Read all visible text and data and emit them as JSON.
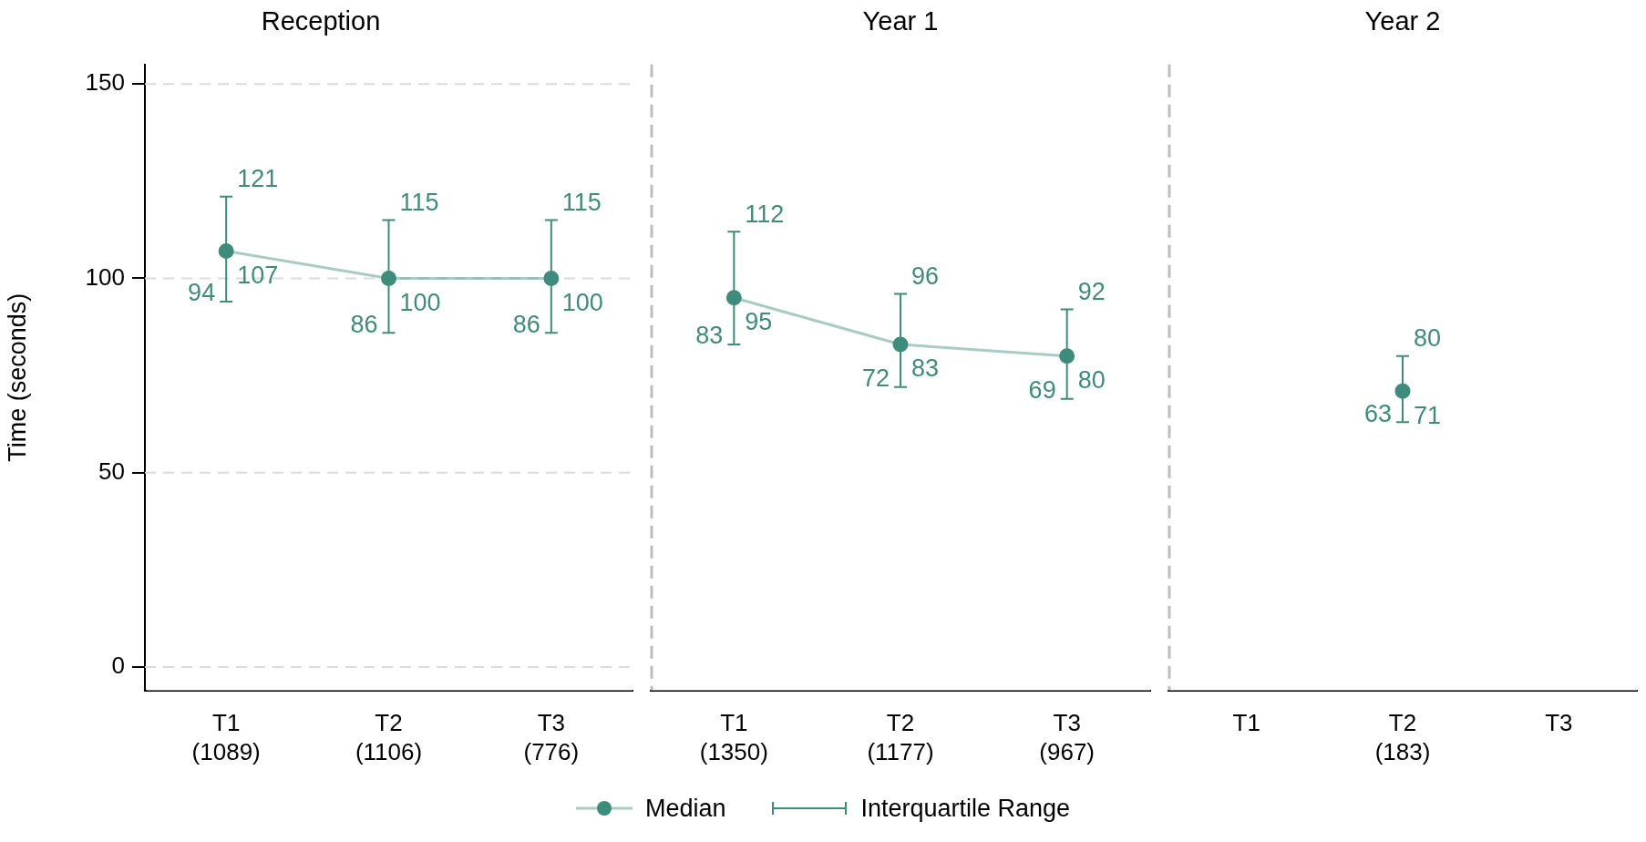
{
  "chart_data": [
    {
      "type": "line",
      "title": "Reception",
      "ylabel": "Time (seconds)",
      "categories": [
        "T1\n(1089)",
        "T2\n(1106)",
        "T3\n(776)"
      ],
      "ylim": [
        -6,
        155
      ],
      "yticks": [
        0,
        50,
        100,
        150
      ],
      "grid": "y",
      "marker": "circle",
      "legend": "bottom",
      "data_labels": true,
      "annotations": [
        "Interquartile Range",
        {
          "text": "121",
          "x": "T1\n(1089)",
          "y": 121
        },
        {
          "text": "94",
          "x": "T1\n(1089)",
          "y": 94
        },
        {
          "text": "115",
          "x": "T2\n(1106)",
          "y": 115
        },
        {
          "text": "86",
          "x": "T2\n(1106)",
          "y": 86
        },
        {
          "text": "115",
          "x": "T3\n(776)",
          "y": 115
        },
        {
          "text": "86",
          "x": "T3\n(776)",
          "y": 86
        }
      ],
      "series": [
        {
          "name": "Median",
          "color": "#3e8c7c",
          "values": [
            107,
            100,
            100
          ],
          "errors": [
            [
              94,
              121
            ],
            [
              86,
              115
            ],
            [
              86,
              115
            ]
          ]
        }
      ]
    },
    {
      "type": "line",
      "title": "Year 1",
      "categories": [
        "T1\n(1350)",
        "T2\n(1177)",
        "T3\n(967)"
      ],
      "ylim": [
        -6,
        155
      ],
      "tick_labels": "x",
      "grid": "y",
      "marker": "circle",
      "data_labels": true,
      "annotations": [
        {
          "text": "112",
          "x": "T1\n(1350)",
          "y": 112
        },
        {
          "text": "83",
          "x": "T1\n(1350)",
          "y": 83
        },
        {
          "text": "96",
          "x": "T2\n(1177)",
          "y": 96
        },
        {
          "text": "72",
          "x": "T2\n(1177)",
          "y": 72
        },
        {
          "text": "92",
          "x": "T3\n(967)",
          "y": 92
        },
        {
          "text": "69",
          "x": "T3\n(967)",
          "y": 69
        }
      ],
      "series": [
        {
          "color": "#3e8c7c",
          "values": [
            95,
            83,
            80
          ],
          "errors": [
            [
              83,
              112
            ],
            [
              72,
              96
            ],
            [
              69,
              92
            ]
          ]
        }
      ]
    },
    {
      "type": "line",
      "title": "Year 2",
      "categories": [
        "T1",
        "T2\n(183)",
        "T3"
      ],
      "ylim": [
        -6,
        155
      ],
      "tick_labels": "x",
      "grid": "y",
      "marker": "circle",
      "data_labels": true,
      "annotations": [
        {
          "text": "80",
          "x": "T2\n(183)",
          "y": 80
        },
        {
          "text": "63",
          "x": "T2\n(183)",
          "y": 63
        }
      ],
      "series": [
        {
          "color": "#3e8c7c",
          "values": [
            null,
            71,
            null
          ],
          "errors": [
            null,
            [
              63,
              80
            ],
            null
          ]
        }
      ]
    }
  ]
}
